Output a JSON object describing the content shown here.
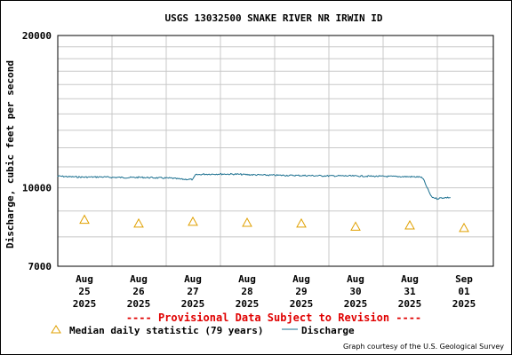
{
  "chart_data": {
    "type": "line",
    "title": "USGS 13032500 SNAKE RIVER NR IRWIN ID",
    "ylabel": "Discharge, cubic feet per second",
    "xlabel": "",
    "y_scale": "log",
    "ylim": [
      7000,
      20000
    ],
    "y_ticks": [
      {
        "value": 7000,
        "label": "7000"
      },
      {
        "value": 10000,
        "label": "10000"
      },
      {
        "value": 20000,
        "label": "20000"
      }
    ],
    "x_ticks": [
      {
        "day": 0,
        "lines": [
          "Aug",
          "25",
          "2025"
        ]
      },
      {
        "day": 1,
        "lines": [
          "Aug",
          "26",
          "2025"
        ]
      },
      {
        "day": 2,
        "lines": [
          "Aug",
          "27",
          "2025"
        ]
      },
      {
        "day": 3,
        "lines": [
          "Aug",
          "28",
          "2025"
        ]
      },
      {
        "day": 4,
        "lines": [
          "Aug",
          "29",
          "2025"
        ]
      },
      {
        "day": 5,
        "lines": [
          "Aug",
          "30",
          "2025"
        ]
      },
      {
        "day": 6,
        "lines": [
          "Aug",
          "31",
          "2025"
        ]
      },
      {
        "day": 7,
        "lines": [
          "Sep",
          "01",
          "2025"
        ]
      }
    ],
    "series": [
      {
        "name": "Discharge",
        "color": "#1a6f8f",
        "points": [
          [
            -0.5,
            10550
          ],
          [
            -0.3,
            10520
          ],
          [
            0.0,
            10500
          ],
          [
            0.3,
            10510
          ],
          [
            0.5,
            10490
          ],
          [
            0.8,
            10480
          ],
          [
            1.0,
            10490
          ],
          [
            1.3,
            10470
          ],
          [
            1.6,
            10450
          ],
          [
            1.8,
            10400
          ],
          [
            2.0,
            10390
          ],
          [
            2.05,
            10610
          ],
          [
            2.2,
            10640
          ],
          [
            2.5,
            10650
          ],
          [
            2.8,
            10640
          ],
          [
            3.0,
            10620
          ],
          [
            3.3,
            10600
          ],
          [
            3.6,
            10590
          ],
          [
            3.9,
            10580
          ],
          [
            4.2,
            10570
          ],
          [
            4.5,
            10560
          ],
          [
            4.8,
            10560
          ],
          [
            5.1,
            10550
          ],
          [
            5.4,
            10540
          ],
          [
            5.7,
            10530
          ],
          [
            6.0,
            10520
          ],
          [
            6.2,
            10510
          ],
          [
            6.25,
            10400
          ],
          [
            6.32,
            10000
          ],
          [
            6.4,
            9600
          ],
          [
            6.5,
            9520
          ],
          [
            6.6,
            9560
          ],
          [
            6.75,
            9570
          ]
        ]
      },
      {
        "name": "Median daily statistic (79 years)",
        "marker": "triangle",
        "color": "#e0a000",
        "points": [
          [
            0.0,
            8650
          ],
          [
            1.0,
            8500
          ],
          [
            2.0,
            8570
          ],
          [
            3.0,
            8530
          ],
          [
            4.0,
            8500
          ],
          [
            5.0,
            8380
          ],
          [
            6.0,
            8430
          ],
          [
            7.0,
            8330
          ]
        ]
      }
    ],
    "grid": true,
    "provisional_note": "---- Provisional Data Subject to Revision ----",
    "legend": {
      "placement": "bottom",
      "items": [
        {
          "label": "Median daily statistic (79 years)",
          "symbol": "triangle",
          "color": "#e0a000"
        },
        {
          "label": "Discharge",
          "symbol": "line",
          "color": "#1a6f8f"
        }
      ]
    },
    "credit": "Graph courtesy of the U.S. Geological Survey"
  }
}
